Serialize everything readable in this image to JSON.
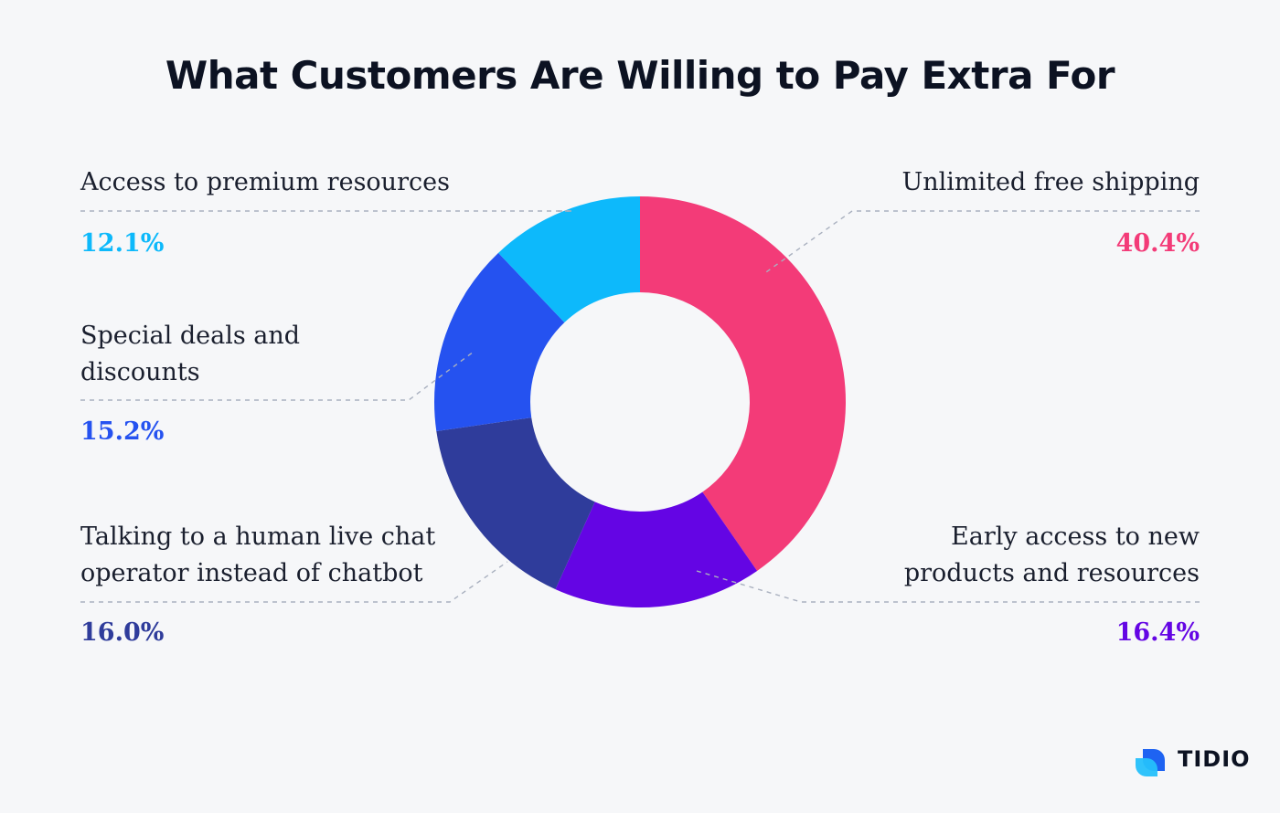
{
  "chart_data": {
    "type": "pie",
    "title": "What Customers Are Willing to Pay Extra For",
    "slices": [
      {
        "label": "Unlimited free shipping",
        "value": 40.4,
        "display": "40.4%",
        "color": "#f33b78"
      },
      {
        "label": "Early access to new products and resources",
        "value": 16.4,
        "display": "16.4%",
        "color": "#6405e4"
      },
      {
        "label": "Talking to a human live chat operator instead of chatbot",
        "value": 16.0,
        "display": "16.0%",
        "color": "#2f3c9b"
      },
      {
        "label": "Special deals and discounts",
        "value": 15.2,
        "display": "15.2%",
        "color": "#2552f0"
      },
      {
        "label": "Access to premium resources",
        "value": 12.1,
        "display": "12.1%",
        "color": "#0db9fb"
      }
    ],
    "donut": true,
    "legend": "none"
  },
  "labels": {
    "premium": {
      "line1": "Access to premium resources"
    },
    "deals": {
      "line1": "Special deals and",
      "line2": "discounts"
    },
    "human": {
      "line1": "Talking to a human live chat",
      "line2": "operator instead of chatbot"
    },
    "shipping": {
      "line1": "Unlimited free shipping"
    },
    "early": {
      "line1": "Early access to new",
      "line2": "products and resources"
    }
  },
  "brand": {
    "name": "TIDIO"
  }
}
